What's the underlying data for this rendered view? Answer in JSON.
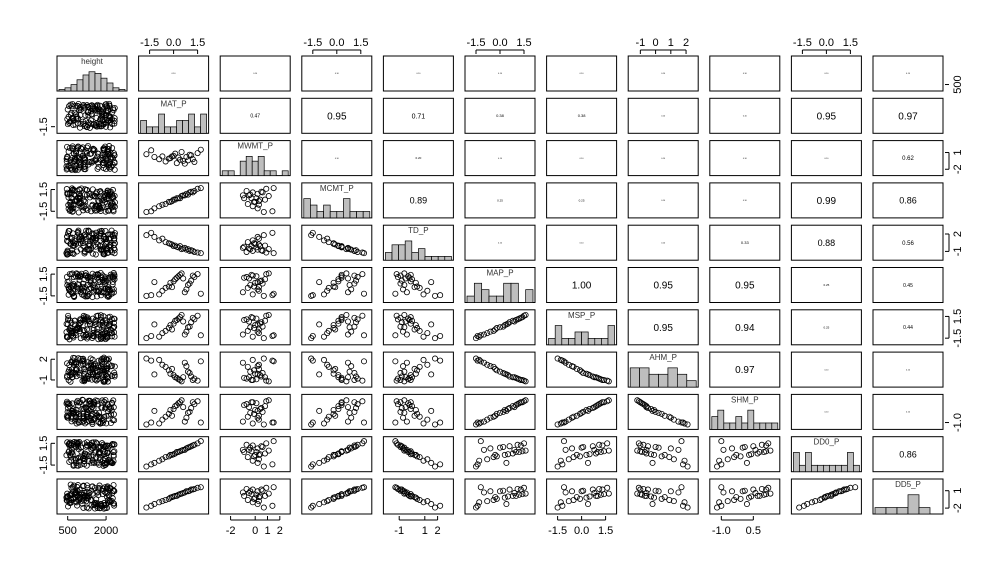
{
  "chart_data": {
    "type": "scatter",
    "variables": [
      "height",
      "MAT_P",
      "MWMT_P",
      "MCMT_P",
      "TD_P",
      "MAP_P",
      "MSP_P",
      "AHM_P",
      "SHM_P",
      "DD0_P",
      "DD5_P"
    ],
    "axes": [
      {
        "labels": [
          "500",
          "2000"
        ],
        "values": [
          500,
          2000
        ],
        "range": [
          200,
          2700
        ]
      },
      {
        "labels": [
          "-1.5",
          "0.0",
          "1.5"
        ],
        "values": [
          -1.5,
          0,
          1.5
        ],
        "range": [
          -2,
          2
        ]
      },
      {
        "labels": [
          "-2",
          "0",
          "1",
          "2"
        ],
        "values": [
          -2,
          0,
          1,
          2
        ],
        "range": [
          -2.6,
          2.6
        ]
      },
      {
        "labels": [
          "-1.5",
          "0.0",
          "1.5"
        ],
        "values": [
          -1.5,
          0,
          1.5
        ],
        "range": [
          -2,
          2
        ]
      },
      {
        "labels": [
          "-1",
          "1",
          "2"
        ],
        "values": [
          -1,
          1,
          2
        ],
        "range": [
          -2,
          3
        ]
      },
      {
        "labels": [
          "-1.5",
          "0.0",
          "1.5"
        ],
        "values": [
          -1.5,
          0,
          1.5
        ],
        "range": [
          -2,
          2
        ]
      },
      {
        "labels": [
          "-1.5",
          "0.0",
          "1.5"
        ],
        "values": [
          -1.5,
          0,
          1.5
        ],
        "range": [
          -2,
          2
        ]
      },
      {
        "labels": [
          "-1",
          "0",
          "1",
          "2"
        ],
        "values": [
          -1,
          0,
          1,
          2
        ],
        "range": [
          -1.6,
          2.6
        ]
      },
      {
        "labels": [
          "-1.0",
          "0.5"
        ],
        "values": [
          -1,
          0.5
        ],
        "range": [
          -1.4,
          1.6
        ]
      },
      {
        "labels": [
          "-1.5",
          "0.0",
          "1.5"
        ],
        "values": [
          -1.5,
          0,
          1.5
        ],
        "range": [
          -2,
          2
        ]
      },
      {
        "labels": [
          "-2",
          "0",
          "1",
          "2"
        ],
        "values": [
          -2,
          0,
          1,
          2
        ],
        "range": [
          -2.5,
          2.5
        ]
      }
    ],
    "top_axes": {
      "1": "-1.5 0.0 1.5",
      "3": "-1.5 0.0 1.5",
      "5": "-1.5 0.0 1.5",
      "7": "-1 0 1 2",
      "9": "-1.5 0.0 1.5"
    },
    "bottom_axes": {
      "0": "500 2000",
      "2": "-2 0 1 2",
      "4": "-1 1 2",
      "6": "-1.5 0.0 1.5",
      "8": "-1.0 0.5"
    },
    "left_axes": {
      "1": "-1.5",
      "3": "-1.5 1.5",
      "5": "-1.5 1.5",
      "7": "-1 2",
      "9": "-1.5 1.5"
    },
    "right_axes": {
      "0": "500",
      "2": "-2 1",
      "4": "-1 2",
      "6": "-1.5 1.5",
      "8": "-1.0",
      "10": "-2 1"
    },
    "correlations": [
      {
        "row": 1,
        "col": 2,
        "text": "0.47",
        "size": 5
      },
      {
        "row": 1,
        "col": 3,
        "text": "0.95",
        "size": 10
      },
      {
        "row": 1,
        "col": 4,
        "text": "0.71",
        "size": 7
      },
      {
        "row": 1,
        "col": 5,
        "text": "0.38",
        "size": 4
      },
      {
        "row": 1,
        "col": 6,
        "text": "0.38",
        "size": 4
      },
      {
        "row": 1,
        "col": 9,
        "text": "0.95",
        "size": 10
      },
      {
        "row": 1,
        "col": 10,
        "text": "0.97",
        "size": 10
      },
      {
        "row": 2,
        "col": 4,
        "text": "0.20",
        "size": 3
      },
      {
        "row": 2,
        "col": 10,
        "text": "0.62",
        "size": 6
      },
      {
        "row": 3,
        "col": 4,
        "text": "0.89",
        "size": 9
      },
      {
        "row": 3,
        "col": 5,
        "text": "0.25",
        "size": 3
      },
      {
        "row": 3,
        "col": 6,
        "text": "0.25",
        "size": 3
      },
      {
        "row": 3,
        "col": 9,
        "text": "0.99",
        "size": 10
      },
      {
        "row": 3,
        "col": 10,
        "text": "0.86",
        "size": 9
      },
      {
        "row": 4,
        "col": 8,
        "text": "0.33",
        "size": 4
      },
      {
        "row": 4,
        "col": 9,
        "text": "0.88",
        "size": 9
      },
      {
        "row": 4,
        "col": 10,
        "text": "0.56",
        "size": 6
      },
      {
        "row": 5,
        "col": 6,
        "text": "1.00",
        "size": 10
      },
      {
        "row": 5,
        "col": 7,
        "text": "0.95",
        "size": 10
      },
      {
        "row": 5,
        "col": 8,
        "text": "0.95",
        "size": 10
      },
      {
        "row": 5,
        "col": 9,
        "text": "0.25",
        "size": 3
      },
      {
        "row": 5,
        "col": 10,
        "text": "0.45",
        "size": 5
      },
      {
        "row": 6,
        "col": 7,
        "text": "0.95",
        "size": 10
      },
      {
        "row": 6,
        "col": 8,
        "text": "0.94",
        "size": 10
      },
      {
        "row": 6,
        "col": 9,
        "text": "0.25",
        "size": 3
      },
      {
        "row": 6,
        "col": 10,
        "text": "0.44",
        "size": 5
      },
      {
        "row": 7,
        "col": 8,
        "text": "0.97",
        "size": 10
      },
      {
        "row": 9,
        "col": 10,
        "text": "0.86",
        "size": 9
      }
    ],
    "histograms": [
      [
        1,
        2,
        4,
        7,
        10,
        12,
        11,
        8,
        5,
        2,
        1
      ],
      [
        2,
        1,
        1,
        3,
        1,
        1,
        2,
        2,
        3,
        1,
        3
      ],
      [
        1,
        1,
        0,
        3,
        4,
        3,
        4,
        1,
        1,
        0,
        1
      ],
      [
        3,
        2,
        1,
        2,
        1,
        1,
        3,
        1,
        1,
        1
      ],
      [
        2,
        4,
        4,
        5,
        2,
        3,
        1,
        1,
        1,
        1
      ],
      [
        1,
        3,
        2,
        1,
        1,
        3,
        3,
        0,
        2
      ],
      [
        1,
        3,
        1,
        1,
        2,
        2,
        1,
        1,
        1,
        3
      ],
      [
        3,
        3,
        2,
        2,
        3,
        2,
        1
      ],
      [
        2,
        3,
        1,
        1,
        2,
        1,
        3,
        1,
        1,
        1,
        1
      ],
      [
        3,
        1,
        3,
        1,
        1,
        1,
        1,
        1,
        1,
        3,
        1
      ],
      [
        1,
        1,
        1,
        3,
        1,
        0
      ]
    ],
    "point_sets": {
      "height": [
        1150,
        1800,
        1400,
        1700,
        1300,
        1950,
        900,
        1600,
        2100,
        1200,
        1650,
        1500,
        1850,
        1000,
        1750,
        1350,
        1550,
        2000,
        1100,
        1450,
        1900,
        1250,
        1700,
        800,
        1600
      ],
      "v1": [
        -1.7,
        -1.4,
        -0.9,
        -0.7,
        -0.5,
        -0.3,
        -0.2,
        0.0,
        0.1,
        0.2,
        0.3,
        0.4,
        0.5,
        0.7,
        0.8,
        0.9,
        1.0,
        1.1,
        1.3,
        1.5,
        1.7,
        -1.2,
        0.6,
        -0.1,
        1.2
      ],
      "v2": [
        0.7,
        1.4,
        -0.2,
        0.3,
        -0.6,
        -0.1,
        0.0,
        0.4,
        0.8,
        -0.9,
        0.1,
        -0.3,
        1.1,
        -1.0,
        0.2,
        -0.4,
        0.6,
        0.5,
        -0.7,
        0.9,
        1.5,
        0.2,
        -0.5,
        0.3,
        -0.2
      ],
      "v3": [
        -1.6,
        -1.5,
        -0.8,
        -0.6,
        -0.5,
        -0.2,
        -0.2,
        0.1,
        0.1,
        0.3,
        0.3,
        0.3,
        0.6,
        0.7,
        0.9,
        0.8,
        1.1,
        1.2,
        1.3,
        1.6,
        1.7,
        -1.1,
        0.7,
        -0.1,
        1.1
      ],
      "v4": [
        1.8,
        2.2,
        0.9,
        1.2,
        0.6,
        0.4,
        0.3,
        -0.1,
        0.0,
        -0.2,
        -0.3,
        -0.1,
        -0.6,
        -0.4,
        -0.7,
        -0.6,
        -0.9,
        -0.8,
        -1.1,
        -1.2,
        -1.3,
        1.5,
        -0.5,
        0.2,
        -0.9
      ],
      "v5": [
        -1.5,
        -1.4,
        -1.3,
        -0.8,
        -0.4,
        -0.2,
        0.3,
        0.5,
        0.8,
        1.0,
        1.2,
        1.4,
        1.6,
        -1.0,
        -0.6,
        0.0,
        0.2,
        0.6,
        1.1,
        1.5,
        -1.2,
        0.4,
        0.9,
        -0.3,
        1.3
      ],
      "v6": [
        -1.5,
        -1.2,
        -1.3,
        -0.8,
        -0.5,
        -0.1,
        0.3,
        0.5,
        0.9,
        1.0,
        1.2,
        1.4,
        1.7,
        -1.0,
        -0.6,
        0.0,
        0.1,
        0.7,
        1.1,
        1.6,
        -1.1,
        0.4,
        0.8,
        -0.3,
        1.3
      ],
      "v7": [
        2.1,
        1.8,
        1.9,
        1.2,
        0.9,
        0.4,
        -0.1,
        -0.3,
        -0.6,
        -0.7,
        -0.9,
        -1.0,
        -1.2,
        1.5,
        1.0,
        0.2,
        0.0,
        -0.5,
        -0.8,
        -1.1,
        1.7,
        -0.2,
        -0.6,
        0.6,
        -1.0
      ],
      "v8": [
        -1.2,
        -1.0,
        -1.1,
        -0.7,
        -0.4,
        -0.1,
        0.3,
        0.4,
        0.7,
        0.8,
        1.0,
        1.1,
        1.3,
        -0.9,
        -0.5,
        0.0,
        0.1,
        0.5,
        0.9,
        1.2,
        -1.0,
        0.2,
        0.6,
        -0.3,
        1.1
      ],
      "v9": [
        -1.7,
        -1.4,
        -0.9,
        -0.7,
        -0.4,
        -0.3,
        -0.1,
        0.0,
        0.1,
        0.3,
        0.3,
        0.4,
        0.5,
        0.6,
        0.8,
        0.9,
        1.0,
        1.1,
        1.3,
        1.5,
        1.8,
        -1.2,
        0.6,
        -0.1,
        1.2
      ],
      "v10": [
        -1.9,
        -1.6,
        -1.0,
        -0.8,
        -0.6,
        -0.4,
        -0.2,
        0.0,
        0.1,
        0.1,
        0.3,
        0.4,
        0.5,
        0.7,
        0.9,
        0.9,
        1.0,
        1.2,
        1.3,
        1.5,
        1.6,
        -1.3,
        0.6,
        -0.1,
        1.2
      ]
    },
    "height_cloud": {
      "count": 140,
      "range": [
        450,
        2350
      ]
    }
  }
}
